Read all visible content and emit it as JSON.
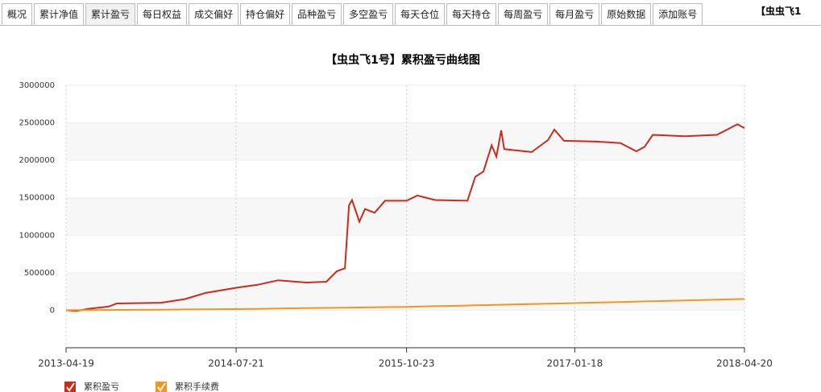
{
  "tabs": [
    "概况",
    "累计净值",
    "累计盈亏",
    "每日权益",
    "成交偏好",
    "持仓偏好",
    "品种盈亏",
    "多空盈亏",
    "每天仓位",
    "每天持仓",
    "每周盈亏",
    "每月盈亏",
    "原始数据",
    "添加账号"
  ],
  "account": "【虫虫飞1",
  "chart_data": {
    "type": "line",
    "title": "【虫虫飞1号】累积盈亏曲线图",
    "x": [
      "2013-04-19",
      "2013-05-17",
      "2013-06-19",
      "2013-08-12",
      "2013-09-03",
      "2013-12-31",
      "2014-03-06",
      "2014-04-29",
      "2014-07-21",
      "2014-09-17",
      "2014-11-11",
      "2015-01-26",
      "2015-03-21",
      "2015-04-18",
      "2015-05-10",
      "2015-05-21",
      "2015-05-29",
      "2015-06-18",
      "2015-07-03",
      "2015-07-29",
      "2015-08-26",
      "2015-10-23",
      "2015-11-21",
      "2016-01-08",
      "2016-04-04",
      "2016-04-25",
      "2016-05-17",
      "2016-06-08",
      "2016-06-21",
      "2016-07-04",
      "2016-07-12",
      "2016-09-24",
      "2016-11-07",
      "2016-11-24",
      "2016-12-20",
      "2017-03-17",
      "2017-05-21",
      "2017-07-03",
      "2017-07-25",
      "2017-08-16",
      "2017-11-11",
      "2018-02-05",
      "2018-04-01",
      "2018-04-20"
    ],
    "series": [
      {
        "name": "累积盈亏",
        "color": "#cc2a1a",
        "values": [
          0,
          -10000,
          20000,
          50000,
          90000,
          100000,
          150000,
          230000,
          300000,
          340000,
          400000,
          370000,
          380000,
          520000,
          560000,
          1400000,
          1470000,
          1180000,
          1350000,
          1300000,
          1460000,
          1460000,
          1530000,
          1470000,
          1460000,
          1780000,
          1850000,
          2200000,
          2050000,
          2400000,
          2150000,
          2110000,
          2270000,
          2410000,
          2260000,
          2250000,
          2230000,
          2120000,
          2180000,
          2340000,
          2320000,
          2340000,
          2480000,
          2430000
        ]
      },
      {
        "name": "累积手续费",
        "color": "#f7941d",
        "values": [
          0,
          1000,
          2000,
          4000,
          5000,
          8000,
          11000,
          12000,
          15000,
          19000,
          23000,
          28000,
          31000,
          33000,
          35000,
          35000,
          36000,
          37000,
          38000,
          40000,
          42000,
          45000,
          49000,
          54000,
          63000,
          66000,
          68000,
          70000,
          72000,
          73000,
          74000,
          82000,
          87000,
          89000,
          92000,
          102000,
          110000,
          115000,
          118000,
          120000,
          131000,
          141000,
          148000,
          150000
        ]
      }
    ],
    "xlim": [
      "2013-04-19",
      "2018-04-20"
    ],
    "xticks": [
      "2013-04-19",
      "2014-07-21",
      "2015-10-23",
      "2017-01-18",
      "2018-04-20"
    ],
    "ylim": [
      -500000,
      3000000
    ],
    "yticks": [
      0,
      500000,
      1000000,
      1500000,
      2000000,
      2500000,
      3000000
    ],
    "grid": true
  }
}
